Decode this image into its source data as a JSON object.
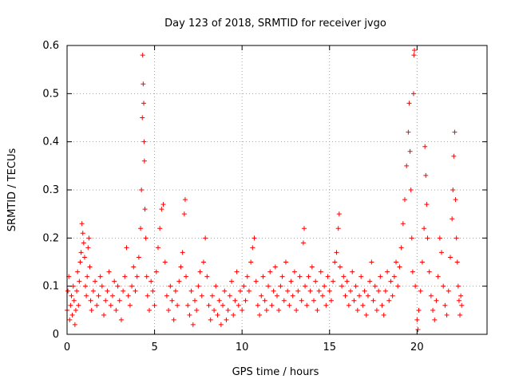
{
  "chart_data": {
    "type": "scatter",
    "title": "Day 123 of 2018, SRMTID for receiver jvgo",
    "xlabel": "GPS time / hours",
    "ylabel": "SRMTID / TECUs",
    "xlim": [
      0,
      24
    ],
    "ylim": [
      0,
      0.6
    ],
    "grid": true,
    "marker": "+",
    "xticks": [
      0,
      5,
      10,
      15,
      20
    ],
    "xtick_labels": [
      "0",
      "5",
      "10",
      "15",
      "20"
    ],
    "yticks": [
      0,
      0.1,
      0.2,
      0.3,
      0.4,
      0.5,
      0.6
    ],
    "ytick_labels": [
      "0",
      "0.1",
      "0.2",
      "0.3",
      "0.4",
      "0.5",
      "0.6"
    ],
    "point_color": "#ff0000",
    "grid_color": "#a0a0a0",
    "series": [
      {
        "name": "SRMTID",
        "points": [
          [
            0.0,
            0.05
          ],
          [
            0.05,
            0.09
          ],
          [
            0.1,
            0.12
          ],
          [
            0.15,
            0.03
          ],
          [
            0.2,
            0.06
          ],
          [
            0.25,
            0.08
          ],
          [
            0.3,
            0.04
          ],
          [
            0.35,
            0.1
          ],
          [
            0.4,
            0.07
          ],
          [
            0.45,
            0.02
          ],
          [
            0.5,
            0.05
          ],
          [
            0.55,
            0.09
          ],
          [
            0.6,
            0.13
          ],
          [
            0.65,
            0.06
          ],
          [
            0.7,
            0.11
          ],
          [
            0.75,
            0.15
          ],
          [
            0.8,
            0.17
          ],
          [
            0.85,
            0.23
          ],
          [
            0.9,
            0.21
          ],
          [
            0.95,
            0.19
          ],
          [
            1.0,
            0.16
          ],
          [
            1.05,
            0.1
          ],
          [
            1.1,
            0.08
          ],
          [
            1.15,
            0.12
          ],
          [
            1.2,
            0.18
          ],
          [
            1.25,
            0.2
          ],
          [
            1.3,
            0.14
          ],
          [
            1.35,
            0.07
          ],
          [
            1.4,
            0.05
          ],
          [
            1.5,
            0.09
          ],
          [
            1.6,
            0.11
          ],
          [
            1.7,
            0.06
          ],
          [
            1.8,
            0.08
          ],
          [
            1.9,
            0.12
          ],
          [
            2.0,
            0.1
          ],
          [
            2.1,
            0.04
          ],
          [
            2.2,
            0.07
          ],
          [
            2.3,
            0.09
          ],
          [
            2.4,
            0.13
          ],
          [
            2.5,
            0.06
          ],
          [
            2.6,
            0.08
          ],
          [
            2.7,
            0.11
          ],
          [
            2.8,
            0.05
          ],
          [
            2.9,
            0.1
          ],
          [
            3.0,
            0.07
          ],
          [
            3.1,
            0.03
          ],
          [
            3.2,
            0.09
          ],
          [
            3.3,
            0.12
          ],
          [
            3.4,
            0.18
          ],
          [
            3.5,
            0.08
          ],
          [
            3.6,
            0.06
          ],
          [
            3.7,
            0.1
          ],
          [
            3.8,
            0.14
          ],
          [
            3.9,
            0.09
          ],
          [
            4.0,
            0.12
          ],
          [
            4.1,
            0.16
          ],
          [
            4.2,
            0.22
          ],
          [
            4.25,
            0.3
          ],
          [
            4.3,
            0.45
          ],
          [
            4.32,
            0.58
          ],
          [
            4.35,
            0.52
          ],
          [
            4.38,
            0.48
          ],
          [
            4.4,
            0.4
          ],
          [
            4.42,
            0.36
          ],
          [
            4.45,
            0.26
          ],
          [
            4.5,
            0.2
          ],
          [
            4.55,
            0.12
          ],
          [
            4.6,
            0.08
          ],
          [
            4.7,
            0.05
          ],
          [
            4.8,
            0.11
          ],
          [
            4.9,
            0.09
          ],
          [
            5.0,
            0.06
          ],
          [
            5.1,
            0.13
          ],
          [
            5.2,
            0.18
          ],
          [
            5.3,
            0.22
          ],
          [
            5.4,
            0.26
          ],
          [
            5.5,
            0.27
          ],
          [
            5.6,
            0.15
          ],
          [
            5.7,
            0.08
          ],
          [
            5.8,
            0.05
          ],
          [
            5.9,
            0.1
          ],
          [
            6.0,
            0.07
          ],
          [
            6.1,
            0.03
          ],
          [
            6.2,
            0.09
          ],
          [
            6.3,
            0.06
          ],
          [
            6.4,
            0.11
          ],
          [
            6.5,
            0.14
          ],
          [
            6.6,
            0.17
          ],
          [
            6.7,
            0.25
          ],
          [
            6.75,
            0.28
          ],
          [
            6.8,
            0.12
          ],
          [
            6.9,
            0.06
          ],
          [
            7.0,
            0.04
          ],
          [
            7.1,
            0.09
          ],
          [
            7.2,
            0.02
          ],
          [
            7.3,
            0.07
          ],
          [
            7.4,
            0.05
          ],
          [
            7.5,
            0.1
          ],
          [
            7.6,
            0.13
          ],
          [
            7.7,
            0.08
          ],
          [
            7.8,
            0.15
          ],
          [
            7.9,
            0.2
          ],
          [
            8.0,
            0.12
          ],
          [
            8.1,
            0.06
          ],
          [
            8.2,
            0.03
          ],
          [
            8.3,
            0.08
          ],
          [
            8.4,
            0.05
          ],
          [
            8.5,
            0.1
          ],
          [
            8.6,
            0.04
          ],
          [
            8.7,
            0.07
          ],
          [
            8.8,
            0.02
          ],
          [
            8.9,
            0.06
          ],
          [
            9.0,
            0.09
          ],
          [
            9.1,
            0.03
          ],
          [
            9.2,
            0.05
          ],
          [
            9.3,
            0.08
          ],
          [
            9.4,
            0.11
          ],
          [
            9.5,
            0.04
          ],
          [
            9.6,
            0.07
          ],
          [
            9.7,
            0.13
          ],
          [
            9.8,
            0.06
          ],
          [
            9.9,
            0.09
          ],
          [
            10.0,
            0.05
          ],
          [
            10.1,
            0.1
          ],
          [
            10.2,
            0.07
          ],
          [
            10.3,
            0.12
          ],
          [
            10.4,
            0.09
          ],
          [
            10.5,
            0.15
          ],
          [
            10.6,
            0.18
          ],
          [
            10.7,
            0.2
          ],
          [
            10.8,
            0.11
          ],
          [
            10.9,
            0.06
          ],
          [
            11.0,
            0.04
          ],
          [
            11.1,
            0.08
          ],
          [
            11.2,
            0.12
          ],
          [
            11.3,
            0.07
          ],
          [
            11.4,
            0.05
          ],
          [
            11.5,
            0.1
          ],
          [
            11.6,
            0.13
          ],
          [
            11.7,
            0.06
          ],
          [
            11.8,
            0.09
          ],
          [
            11.9,
            0.14
          ],
          [
            12.0,
            0.08
          ],
          [
            12.1,
            0.05
          ],
          [
            12.2,
            0.1
          ],
          [
            12.3,
            0.12
          ],
          [
            12.4,
            0.07
          ],
          [
            12.5,
            0.15
          ],
          [
            12.6,
            0.09
          ],
          [
            12.7,
            0.06
          ],
          [
            12.8,
            0.11
          ],
          [
            12.9,
            0.08
          ],
          [
            13.0,
            0.13
          ],
          [
            13.1,
            0.05
          ],
          [
            13.2,
            0.09
          ],
          [
            13.3,
            0.12
          ],
          [
            13.4,
            0.07
          ],
          [
            13.5,
            0.19
          ],
          [
            13.55,
            0.22
          ],
          [
            13.6,
            0.1
          ],
          [
            13.7,
            0.06
          ],
          [
            13.8,
            0.12
          ],
          [
            13.9,
            0.09
          ],
          [
            14.0,
            0.14
          ],
          [
            14.1,
            0.07
          ],
          [
            14.2,
            0.11
          ],
          [
            14.3,
            0.05
          ],
          [
            14.4,
            0.09
          ],
          [
            14.5,
            0.13
          ],
          [
            14.6,
            0.08
          ],
          [
            14.7,
            0.1
          ],
          [
            14.8,
            0.06
          ],
          [
            14.9,
            0.12
          ],
          [
            15.0,
            0.09
          ],
          [
            15.1,
            0.07
          ],
          [
            15.2,
            0.11
          ],
          [
            15.3,
            0.15
          ],
          [
            15.4,
            0.17
          ],
          [
            15.5,
            0.22
          ],
          [
            15.55,
            0.25
          ],
          [
            15.6,
            0.14
          ],
          [
            15.7,
            0.1
          ],
          [
            15.8,
            0.12
          ],
          [
            15.9,
            0.08
          ],
          [
            16.0,
            0.11
          ],
          [
            16.1,
            0.06
          ],
          [
            16.2,
            0.09
          ],
          [
            16.3,
            0.13
          ],
          [
            16.4,
            0.07
          ],
          [
            16.5,
            0.1
          ],
          [
            16.6,
            0.05
          ],
          [
            16.7,
            0.08
          ],
          [
            16.8,
            0.12
          ],
          [
            16.9,
            0.06
          ],
          [
            17.0,
            0.09
          ],
          [
            17.1,
            0.04
          ],
          [
            17.2,
            0.08
          ],
          [
            17.3,
            0.11
          ],
          [
            17.4,
            0.15
          ],
          [
            17.5,
            0.07
          ],
          [
            17.6,
            0.1
          ],
          [
            17.7,
            0.05
          ],
          [
            17.8,
            0.09
          ],
          [
            17.9,
            0.12
          ],
          [
            18.0,
            0.06
          ],
          [
            18.1,
            0.04
          ],
          [
            18.2,
            0.09
          ],
          [
            18.3,
            0.13
          ],
          [
            18.4,
            0.07
          ],
          [
            18.5,
            0.11
          ],
          [
            18.6,
            0.08
          ],
          [
            18.7,
            0.12
          ],
          [
            18.8,
            0.15
          ],
          [
            18.9,
            0.1
          ],
          [
            19.0,
            0.14
          ],
          [
            19.1,
            0.18
          ],
          [
            19.2,
            0.23
          ],
          [
            19.3,
            0.28
          ],
          [
            19.4,
            0.35
          ],
          [
            19.5,
            0.42
          ],
          [
            19.55,
            0.48
          ],
          [
            19.6,
            0.38
          ],
          [
            19.65,
            0.3
          ],
          [
            19.7,
            0.2
          ],
          [
            19.75,
            0.13
          ],
          [
            19.8,
            0.5
          ],
          [
            19.82,
            0.58
          ],
          [
            19.85,
            0.59
          ],
          [
            19.9,
            0.1
          ],
          [
            20.0,
            0.03
          ],
          [
            20.05,
            0.01
          ],
          [
            20.1,
            0.05
          ],
          [
            20.2,
            0.09
          ],
          [
            20.3,
            0.15
          ],
          [
            20.4,
            0.22
          ],
          [
            20.45,
            0.39
          ],
          [
            20.5,
            0.33
          ],
          [
            20.55,
            0.27
          ],
          [
            20.6,
            0.2
          ],
          [
            20.7,
            0.13
          ],
          [
            20.8,
            0.08
          ],
          [
            20.9,
            0.05
          ],
          [
            21.0,
            0.03
          ],
          [
            21.1,
            0.07
          ],
          [
            21.2,
            0.12
          ],
          [
            21.3,
            0.2
          ],
          [
            21.4,
            0.17
          ],
          [
            21.5,
            0.1
          ],
          [
            21.6,
            0.06
          ],
          [
            21.7,
            0.04
          ],
          [
            21.8,
            0.09
          ],
          [
            21.9,
            0.16
          ],
          [
            22.0,
            0.24
          ],
          [
            22.05,
            0.3
          ],
          [
            22.1,
            0.37
          ],
          [
            22.15,
            0.42
          ],
          [
            22.2,
            0.28
          ],
          [
            22.25,
            0.2
          ],
          [
            22.3,
            0.15
          ],
          [
            22.35,
            0.1
          ],
          [
            22.4,
            0.07
          ],
          [
            22.45,
            0.04
          ],
          [
            22.5,
            0.08
          ],
          [
            22.55,
            0.06
          ]
        ]
      }
    ]
  }
}
